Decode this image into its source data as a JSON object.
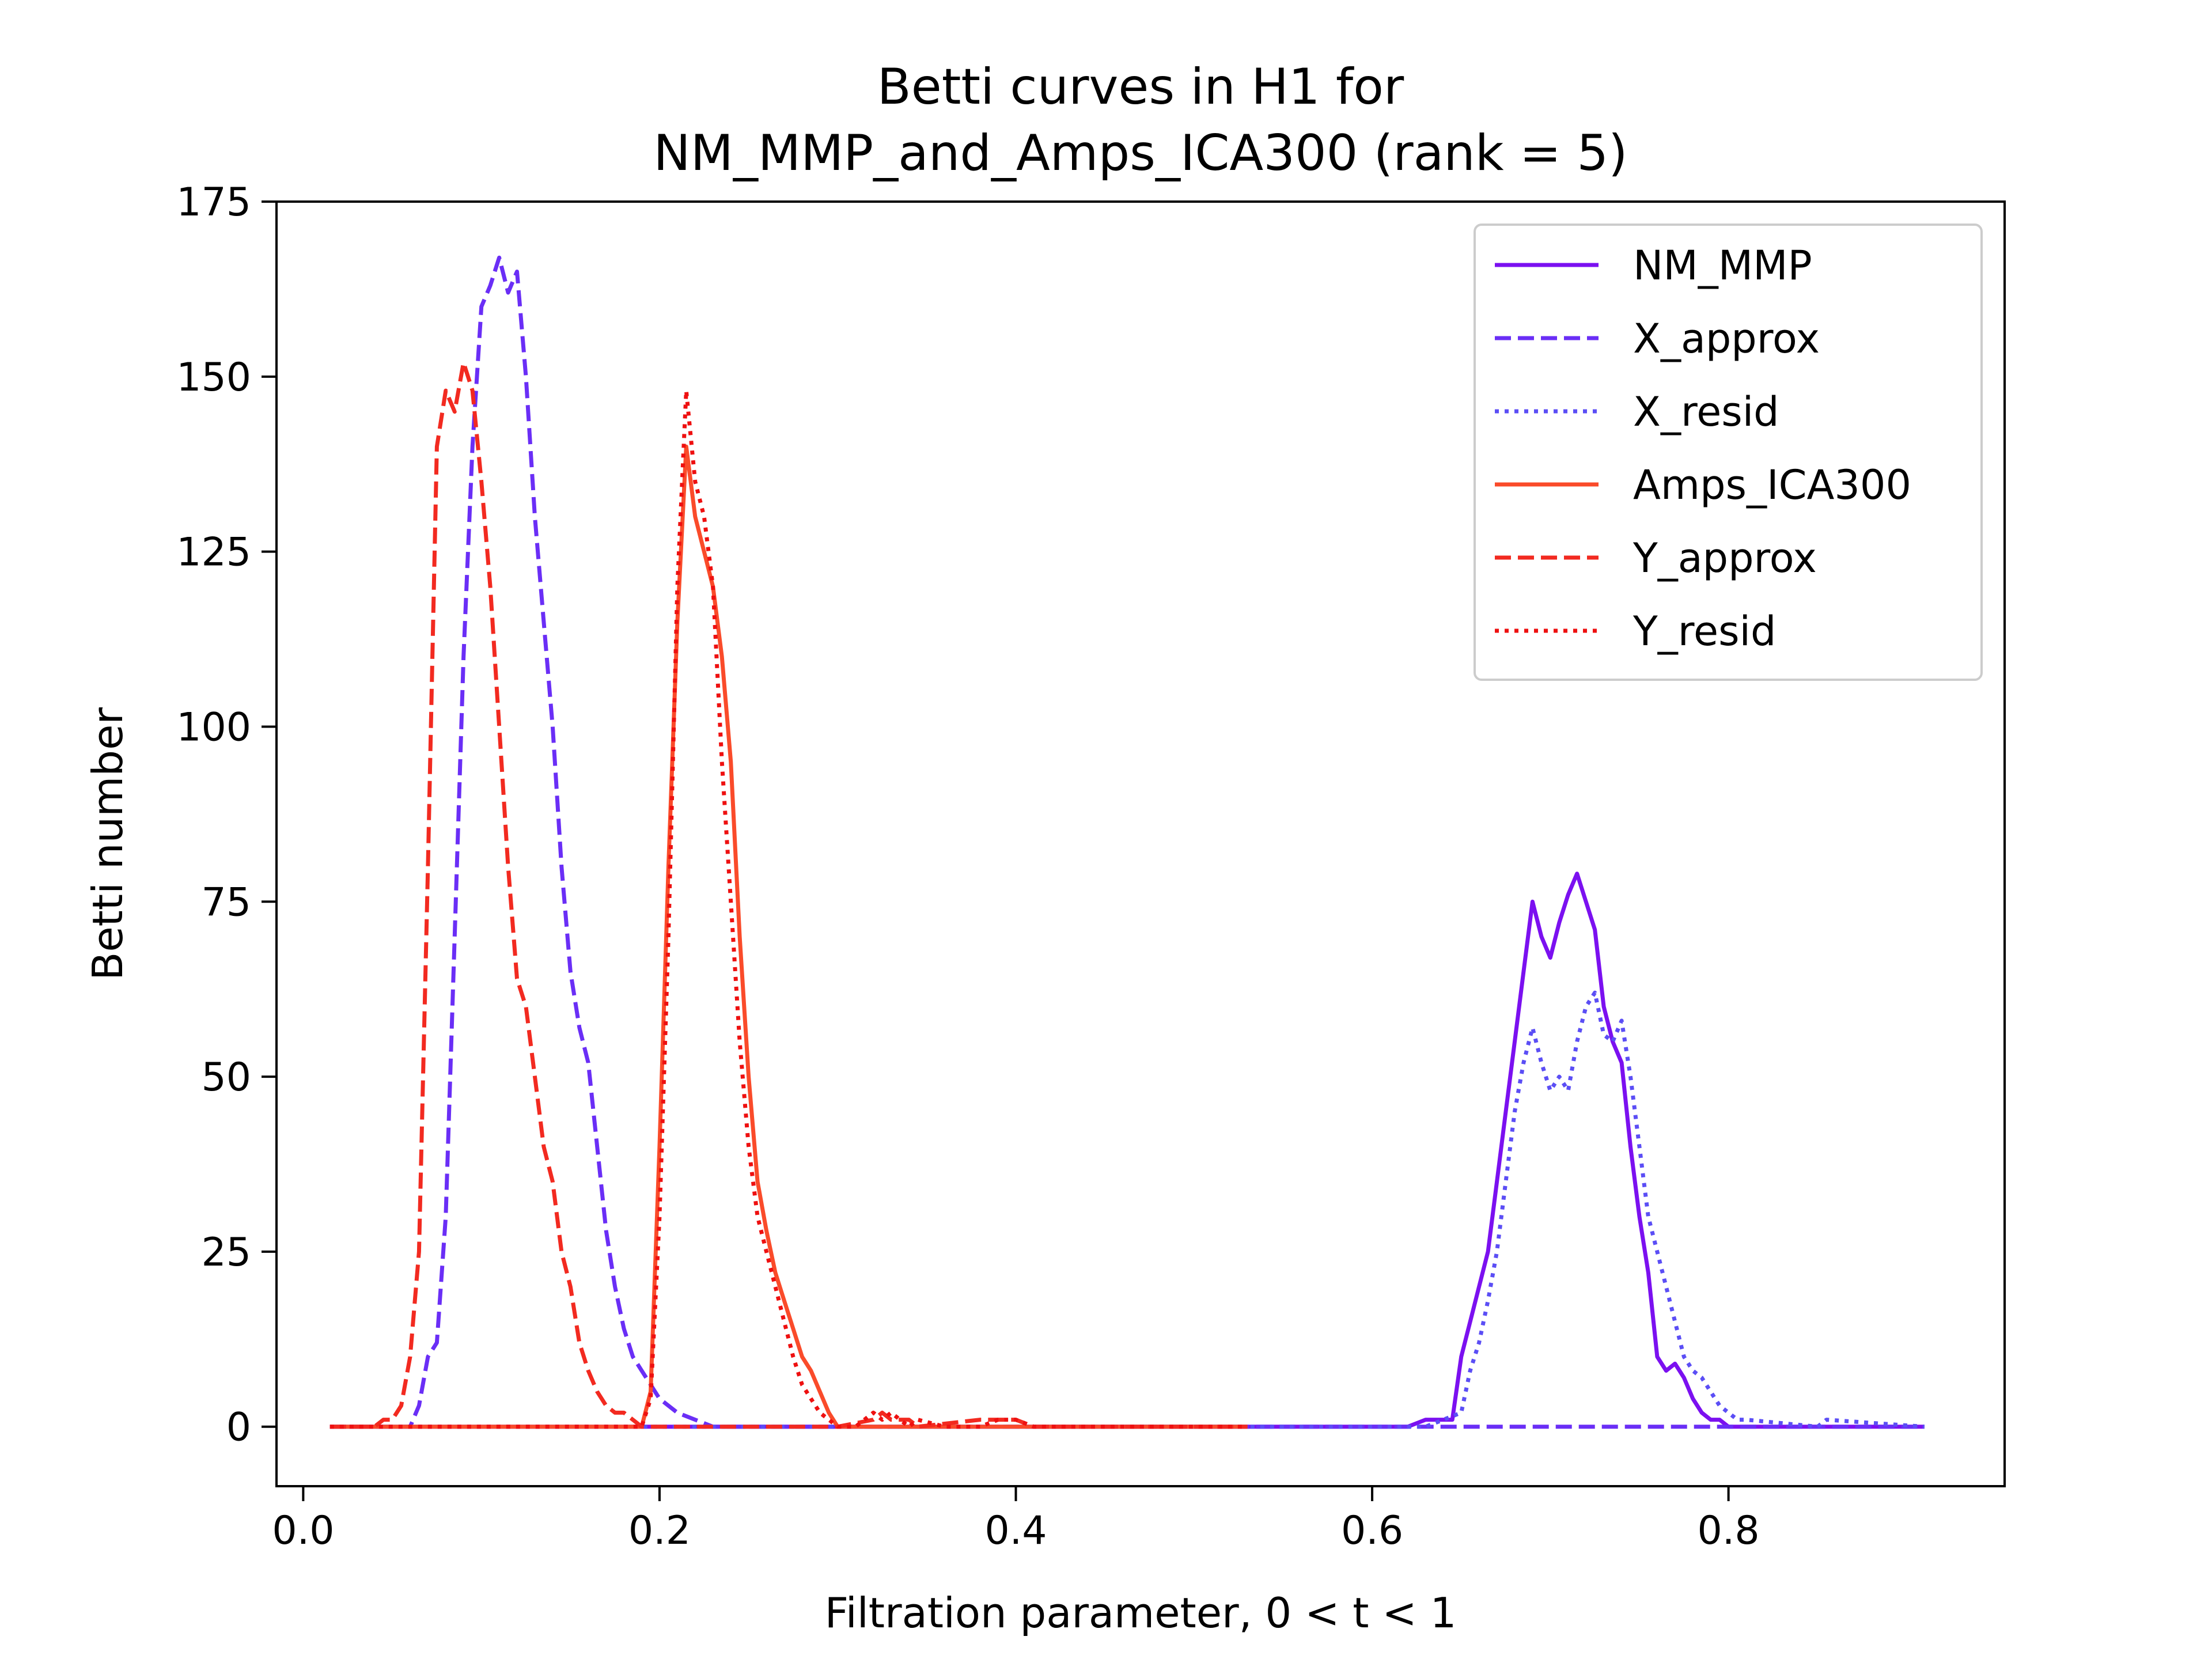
{
  "chart_data": {
    "type": "line",
    "title": [
      "Betti curves in H1 for",
      "NM_MMP_and_Amps_ICA300 (rank = 5)"
    ],
    "xlabel": "Filtration parameter, 0 < t < 1",
    "ylabel": "Betti number",
    "xlim": [
      -0.015,
      0.955
    ],
    "ylim": [
      -8.5,
      175
    ],
    "xticks": [
      0.0,
      0.2,
      0.4,
      0.6,
      0.8
    ],
    "xtick_labels": [
      "0.0",
      "0.2",
      "0.4",
      "0.6",
      "0.8"
    ],
    "yticks": [
      0,
      25,
      50,
      75,
      100,
      125,
      150,
      175
    ],
    "ytick_labels": [
      "0",
      "25",
      "50",
      "75",
      "100",
      "125",
      "150",
      "175"
    ],
    "grid": false,
    "legend_position": "top-right",
    "series": [
      {
        "name": "NM_MMP",
        "style": "solid",
        "color": "#7b10f0",
        "x": [
          0.015,
          0.62,
          0.63,
          0.645,
          0.65,
          0.655,
          0.66,
          0.665,
          0.67,
          0.675,
          0.68,
          0.685,
          0.69,
          0.695,
          0.7,
          0.705,
          0.71,
          0.715,
          0.72,
          0.725,
          0.73,
          0.735,
          0.74,
          0.745,
          0.75,
          0.755,
          0.76,
          0.765,
          0.77,
          0.775,
          0.78,
          0.785,
          0.79,
          0.795,
          0.8,
          0.91
        ],
        "y": [
          0,
          0,
          1,
          1,
          10,
          15,
          20,
          25,
          35,
          45,
          55,
          65,
          75,
          70,
          67,
          72,
          76,
          79,
          75,
          71,
          60,
          55,
          52,
          40,
          30,
          22,
          10,
          8,
          9,
          7,
          4,
          2,
          1,
          1,
          0,
          0
        ]
      },
      {
        "name": "X_approx",
        "style": "dashed",
        "color": "#6a2ef6",
        "x": [
          0.015,
          0.06,
          0.065,
          0.07,
          0.075,
          0.08,
          0.085,
          0.09,
          0.095,
          0.1,
          0.105,
          0.11,
          0.115,
          0.12,
          0.125,
          0.13,
          0.135,
          0.14,
          0.145,
          0.15,
          0.155,
          0.16,
          0.165,
          0.17,
          0.175,
          0.18,
          0.185,
          0.19,
          0.2,
          0.21,
          0.22,
          0.23,
          0.25,
          0.3,
          0.4,
          0.5,
          0.6,
          0.7,
          0.8,
          0.91
        ],
        "y": [
          0,
          0,
          3,
          10,
          12,
          30,
          70,
          110,
          140,
          160,
          163,
          167,
          162,
          165,
          150,
          130,
          115,
          100,
          80,
          65,
          57,
          52,
          40,
          28,
          20,
          14,
          10,
          8,
          4,
          2,
          1,
          0,
          0,
          0,
          0,
          0,
          0,
          0,
          0,
          0
        ]
      },
      {
        "name": "X_resid",
        "style": "dotted",
        "color": "#5b4ef5",
        "x": [
          0.015,
          0.63,
          0.65,
          0.655,
          0.66,
          0.665,
          0.67,
          0.675,
          0.68,
          0.685,
          0.69,
          0.695,
          0.7,
          0.705,
          0.71,
          0.715,
          0.72,
          0.725,
          0.73,
          0.735,
          0.74,
          0.745,
          0.75,
          0.755,
          0.76,
          0.765,
          0.77,
          0.775,
          0.78,
          0.785,
          0.79,
          0.795,
          0.8,
          0.805,
          0.81,
          0.85,
          0.855,
          0.91
        ],
        "y": [
          0,
          0,
          2,
          8,
          12,
          18,
          25,
          35,
          45,
          52,
          57,
          52,
          48,
          50,
          48,
          55,
          60,
          62,
          56,
          55,
          58,
          50,
          40,
          30,
          25,
          20,
          15,
          10,
          8,
          7,
          5,
          3,
          2,
          1,
          1,
          0,
          1,
          0
        ]
      },
      {
        "name": "Amps_ICA300",
        "style": "solid",
        "color": "#fa4b2a",
        "x": [
          0.015,
          0.19,
          0.195,
          0.2,
          0.205,
          0.21,
          0.215,
          0.22,
          0.225,
          0.23,
          0.235,
          0.24,
          0.245,
          0.25,
          0.255,
          0.26,
          0.265,
          0.27,
          0.275,
          0.28,
          0.285,
          0.29,
          0.295,
          0.3,
          0.35,
          0.53
        ],
        "y": [
          0,
          0,
          5,
          40,
          80,
          115,
          140,
          130,
          125,
          120,
          110,
          95,
          70,
          50,
          35,
          28,
          22,
          18,
          14,
          10,
          8,
          5,
          2,
          0,
          0,
          0
        ]
      },
      {
        "name": "Y_approx",
        "style": "dashed",
        "color": "#f22a20",
        "x": [
          0.015,
          0.04,
          0.045,
          0.05,
          0.055,
          0.06,
          0.065,
          0.07,
          0.075,
          0.08,
          0.085,
          0.09,
          0.095,
          0.1,
          0.105,
          0.11,
          0.115,
          0.12,
          0.125,
          0.13,
          0.135,
          0.14,
          0.145,
          0.15,
          0.155,
          0.16,
          0.165,
          0.17,
          0.175,
          0.18,
          0.185,
          0.19,
          0.2,
          0.21,
          0.23,
          0.3,
          0.32,
          0.325,
          0.33,
          0.34,
          0.345,
          0.38,
          0.39,
          0.4,
          0.41,
          0.53
        ],
        "y": [
          0,
          0,
          1,
          1,
          3,
          10,
          25,
          80,
          140,
          148,
          145,
          152,
          148,
          135,
          120,
          100,
          80,
          64,
          60,
          50,
          40,
          35,
          25,
          20,
          12,
          8,
          5,
          3,
          2,
          2,
          1,
          0,
          0,
          0,
          0,
          0,
          1,
          2,
          1,
          1,
          0,
          1,
          1,
          1,
          0,
          0
        ]
      },
      {
        "name": "Y_resid",
        "style": "dotted",
        "color": "#ee1010",
        "x": [
          0.015,
          0.19,
          0.195,
          0.2,
          0.205,
          0.21,
          0.215,
          0.22,
          0.225,
          0.23,
          0.235,
          0.24,
          0.245,
          0.25,
          0.255,
          0.26,
          0.265,
          0.27,
          0.275,
          0.28,
          0.285,
          0.29,
          0.3,
          0.31,
          0.315,
          0.32,
          0.325,
          0.33,
          0.34,
          0.345,
          0.36,
          0.38,
          0.39,
          0.4,
          0.41,
          0.53
        ],
        "y": [
          0,
          0,
          4,
          30,
          70,
          120,
          148,
          135,
          130,
          120,
          95,
          75,
          55,
          40,
          30,
          25,
          20,
          15,
          10,
          6,
          4,
          2,
          0,
          0,
          1,
          2,
          1,
          2,
          0,
          1,
          0,
          0,
          1,
          1,
          0,
          0
        ]
      }
    ]
  }
}
